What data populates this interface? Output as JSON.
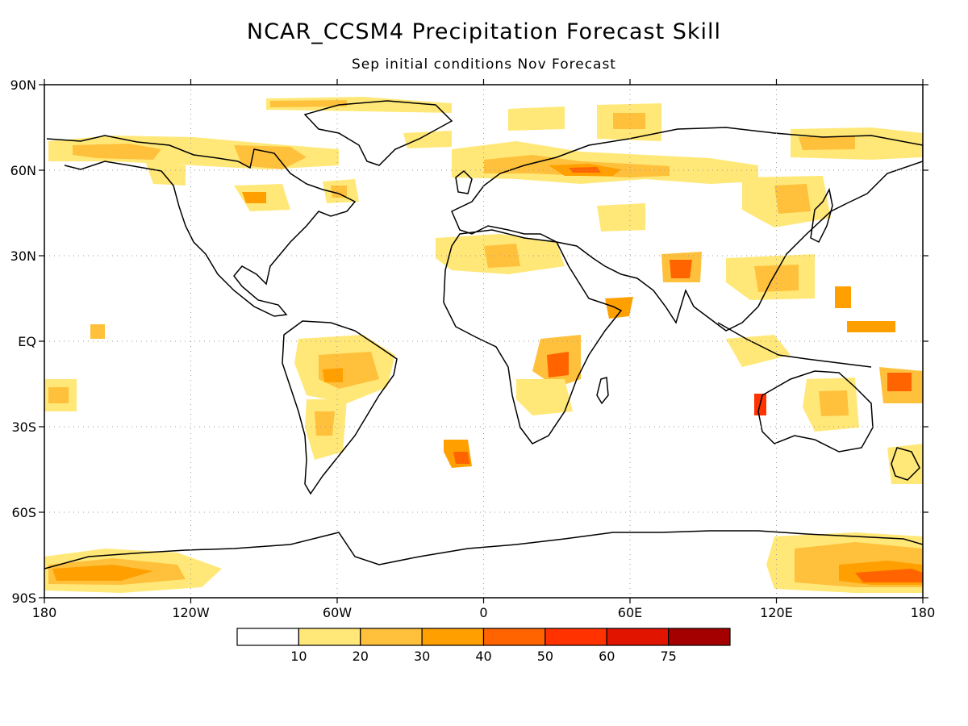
{
  "title": "NCAR_CCSM4 Precipitation Forecast Skill",
  "subtitle": "Sep initial conditions   Nov Forecast",
  "lat_labels": [
    "90N",
    "60N",
    "30N",
    "EQ",
    "30S",
    "60S",
    "90S"
  ],
  "lon_labels": [
    "180",
    "120W",
    "60W",
    "0",
    "60E",
    "120E",
    "180"
  ],
  "colorbar": {
    "colors": [
      "#ffffff",
      "#ffe878",
      "#ffc03c",
      "#ffa000",
      "#ff6400",
      "#ff3200",
      "#e11400",
      "#a50000"
    ],
    "labels": [
      "10",
      "20",
      "30",
      "40",
      "50",
      "60",
      "75"
    ]
  },
  "colors": {
    "coastline": "#000000",
    "gridline": "#9a9a9a"
  }
}
